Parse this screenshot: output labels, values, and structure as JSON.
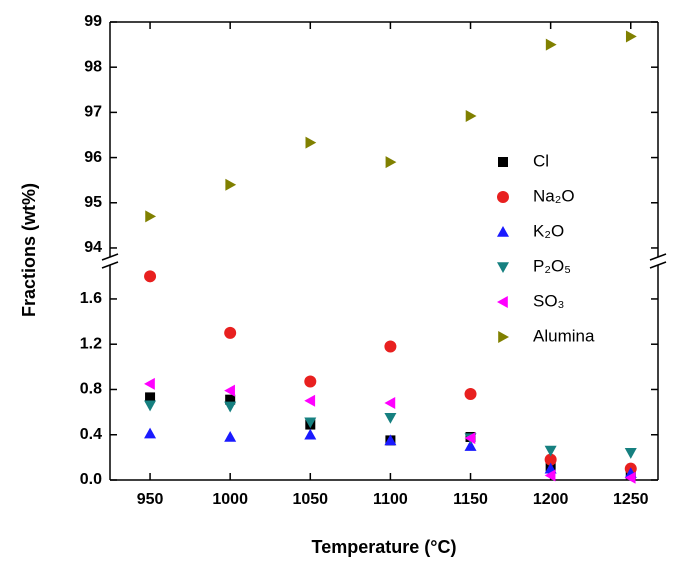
{
  "chart_data": {
    "type": "scatter",
    "x_label": "Temperature (°C)",
    "y_label": "Fractions (wt%)",
    "x": [
      950,
      1000,
      1050,
      1100,
      1150,
      1200,
      1250
    ],
    "xlim": [
      925,
      1267
    ],
    "xticks": [
      950,
      1000,
      1050,
      1100,
      1150,
      1200,
      1250
    ],
    "ylim": [
      0,
      1.9
    ],
    "yticks": [
      {
        "value": 0,
        "label": "0.0"
      },
      0.4,
      0.8,
      1.2,
      1.6
    ],
    "y2lim": [
      93.8,
      99
    ],
    "y2ticks": [
      94,
      95,
      96,
      97,
      98,
      99
    ],
    "broken_axis": true,
    "legend": "right",
    "series": [
      {
        "name": "Cl",
        "color": "#000000",
        "marker": "square",
        "values": [
          0.73,
          0.71,
          0.49,
          0.35,
          0.38,
          0.12,
          0.05
        ]
      },
      {
        "name": "Na₂O",
        "color": "#e8201f",
        "marker": "circle",
        "values": [
          1.8,
          1.3,
          0.87,
          1.18,
          0.76,
          0.18,
          0.1
        ]
      },
      {
        "name": "K₂O",
        "color": "#1a1aff",
        "marker": "triangle-up",
        "values": [
          0.41,
          0.38,
          0.4,
          0.35,
          0.3,
          0.1,
          0.06
        ]
      },
      {
        "name": "P₂O₅",
        "color": "#168080",
        "marker": "triangle-down",
        "values": [
          0.66,
          0.65,
          0.51,
          0.55,
          0.37,
          0.26,
          0.24
        ]
      },
      {
        "name": "SO₃",
        "color": "#ff00ff",
        "marker": "triangle-left",
        "values": [
          0.85,
          0.79,
          0.7,
          0.68,
          0.37,
          0.04,
          0.02
        ]
      },
      {
        "name": "Alumina",
        "color": "#808000",
        "marker": "triangle-right",
        "axis": "y2",
        "values": [
          94.7,
          95.4,
          96.33,
          95.9,
          96.92,
          98.5,
          98.68
        ]
      }
    ]
  }
}
